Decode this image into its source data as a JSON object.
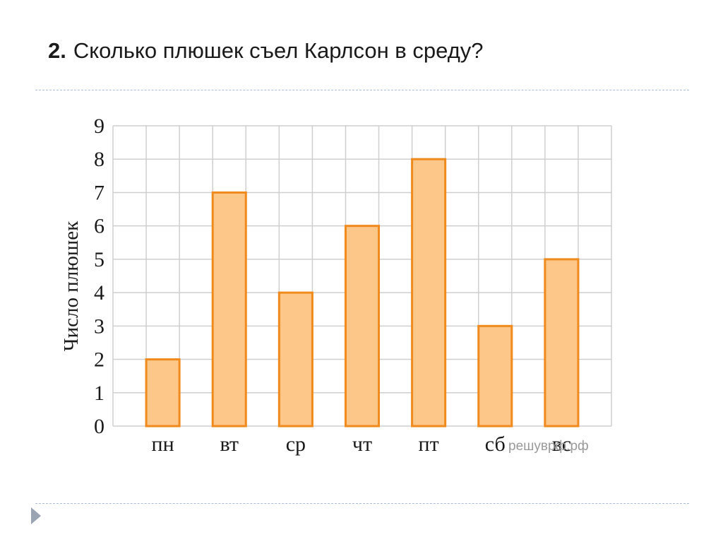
{
  "slide": {
    "question_number": "2.",
    "question_text": "Сколько плюшек съел Карлсон в среду?"
  },
  "chart_data": {
    "type": "bar",
    "categories": [
      "пн",
      "вт",
      "ср",
      "чт",
      "пт",
      "сб",
      "вс"
    ],
    "values": [
      2,
      7,
      4,
      6,
      8,
      3,
      5
    ],
    "title": "",
    "xlabel": "",
    "ylabel": "Число плюшек",
    "ylim": [
      0,
      9
    ],
    "yticks": [
      0,
      1,
      2,
      3,
      4,
      5,
      6,
      7,
      8,
      9
    ],
    "grid": true,
    "bar_fill": "#fdc78a",
    "bar_stroke": "#f08a1c",
    "grid_color": "#cfcfcf",
    "watermark": "решуврф.рф"
  }
}
